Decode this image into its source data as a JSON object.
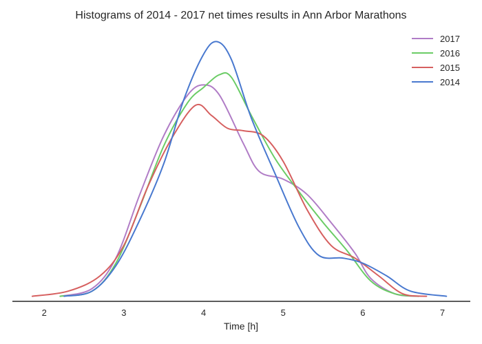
{
  "chart_data": {
    "type": "line",
    "title": "Histograms of 2014 - 2017 net times results in Ann Arbor Marathons",
    "xlabel": "Time [h]",
    "ylabel": "",
    "xlim": [
      1.6,
      7.35
    ],
    "ylim": [
      -0.02,
      1.05
    ],
    "xticks": [
      2,
      3,
      4,
      5,
      6,
      7
    ],
    "grid": false,
    "legend_position": "top-right",
    "series": [
      {
        "name": "2017",
        "color": "#b07cc6",
        "points": [
          [
            2.2,
            0.0
          ],
          [
            2.6,
            0.03
          ],
          [
            2.9,
            0.15
          ],
          [
            3.2,
            0.4
          ],
          [
            3.5,
            0.63
          ],
          [
            3.8,
            0.79
          ],
          [
            4.0,
            0.83
          ],
          [
            4.2,
            0.79
          ],
          [
            4.5,
            0.6
          ],
          [
            4.7,
            0.49
          ],
          [
            5.0,
            0.46
          ],
          [
            5.3,
            0.4
          ],
          [
            5.6,
            0.29
          ],
          [
            5.9,
            0.17
          ],
          [
            6.1,
            0.07
          ],
          [
            6.4,
            0.01
          ],
          [
            6.7,
            0.0
          ]
        ]
      },
      {
        "name": "2016",
        "color": "#6acc65",
        "points": [
          [
            2.2,
            0.0
          ],
          [
            2.6,
            0.02
          ],
          [
            2.9,
            0.13
          ],
          [
            3.2,
            0.35
          ],
          [
            3.5,
            0.59
          ],
          [
            3.8,
            0.76
          ],
          [
            4.0,
            0.82
          ],
          [
            4.2,
            0.87
          ],
          [
            4.35,
            0.86
          ],
          [
            4.6,
            0.71
          ],
          [
            4.9,
            0.54
          ],
          [
            5.2,
            0.41
          ],
          [
            5.5,
            0.29
          ],
          [
            5.8,
            0.18
          ],
          [
            6.1,
            0.06
          ],
          [
            6.4,
            0.01
          ],
          [
            6.7,
            0.0
          ]
        ]
      },
      {
        "name": "2015",
        "color": "#d65f5f",
        "points": [
          [
            1.85,
            0.0
          ],
          [
            2.3,
            0.02
          ],
          [
            2.7,
            0.08
          ],
          [
            3.0,
            0.2
          ],
          [
            3.3,
            0.43
          ],
          [
            3.6,
            0.62
          ],
          [
            3.9,
            0.75
          ],
          [
            4.1,
            0.71
          ],
          [
            4.3,
            0.66
          ],
          [
            4.5,
            0.65
          ],
          [
            4.75,
            0.63
          ],
          [
            5.0,
            0.53
          ],
          [
            5.3,
            0.34
          ],
          [
            5.6,
            0.2
          ],
          [
            5.9,
            0.15
          ],
          [
            6.2,
            0.08
          ],
          [
            6.5,
            0.01
          ],
          [
            6.8,
            0.0
          ]
        ]
      },
      {
        "name": "2014",
        "color": "#4878cf",
        "points": [
          [
            2.25,
            0.0
          ],
          [
            2.6,
            0.02
          ],
          [
            2.9,
            0.12
          ],
          [
            3.2,
            0.3
          ],
          [
            3.5,
            0.52
          ],
          [
            3.75,
            0.77
          ],
          [
            4.0,
            0.95
          ],
          [
            4.17,
            1.0
          ],
          [
            4.35,
            0.93
          ],
          [
            4.6,
            0.7
          ],
          [
            4.9,
            0.48
          ],
          [
            5.2,
            0.27
          ],
          [
            5.45,
            0.16
          ],
          [
            5.75,
            0.15
          ],
          [
            6.0,
            0.13
          ],
          [
            6.3,
            0.08
          ],
          [
            6.6,
            0.02
          ],
          [
            7.05,
            0.0
          ]
        ]
      }
    ]
  }
}
